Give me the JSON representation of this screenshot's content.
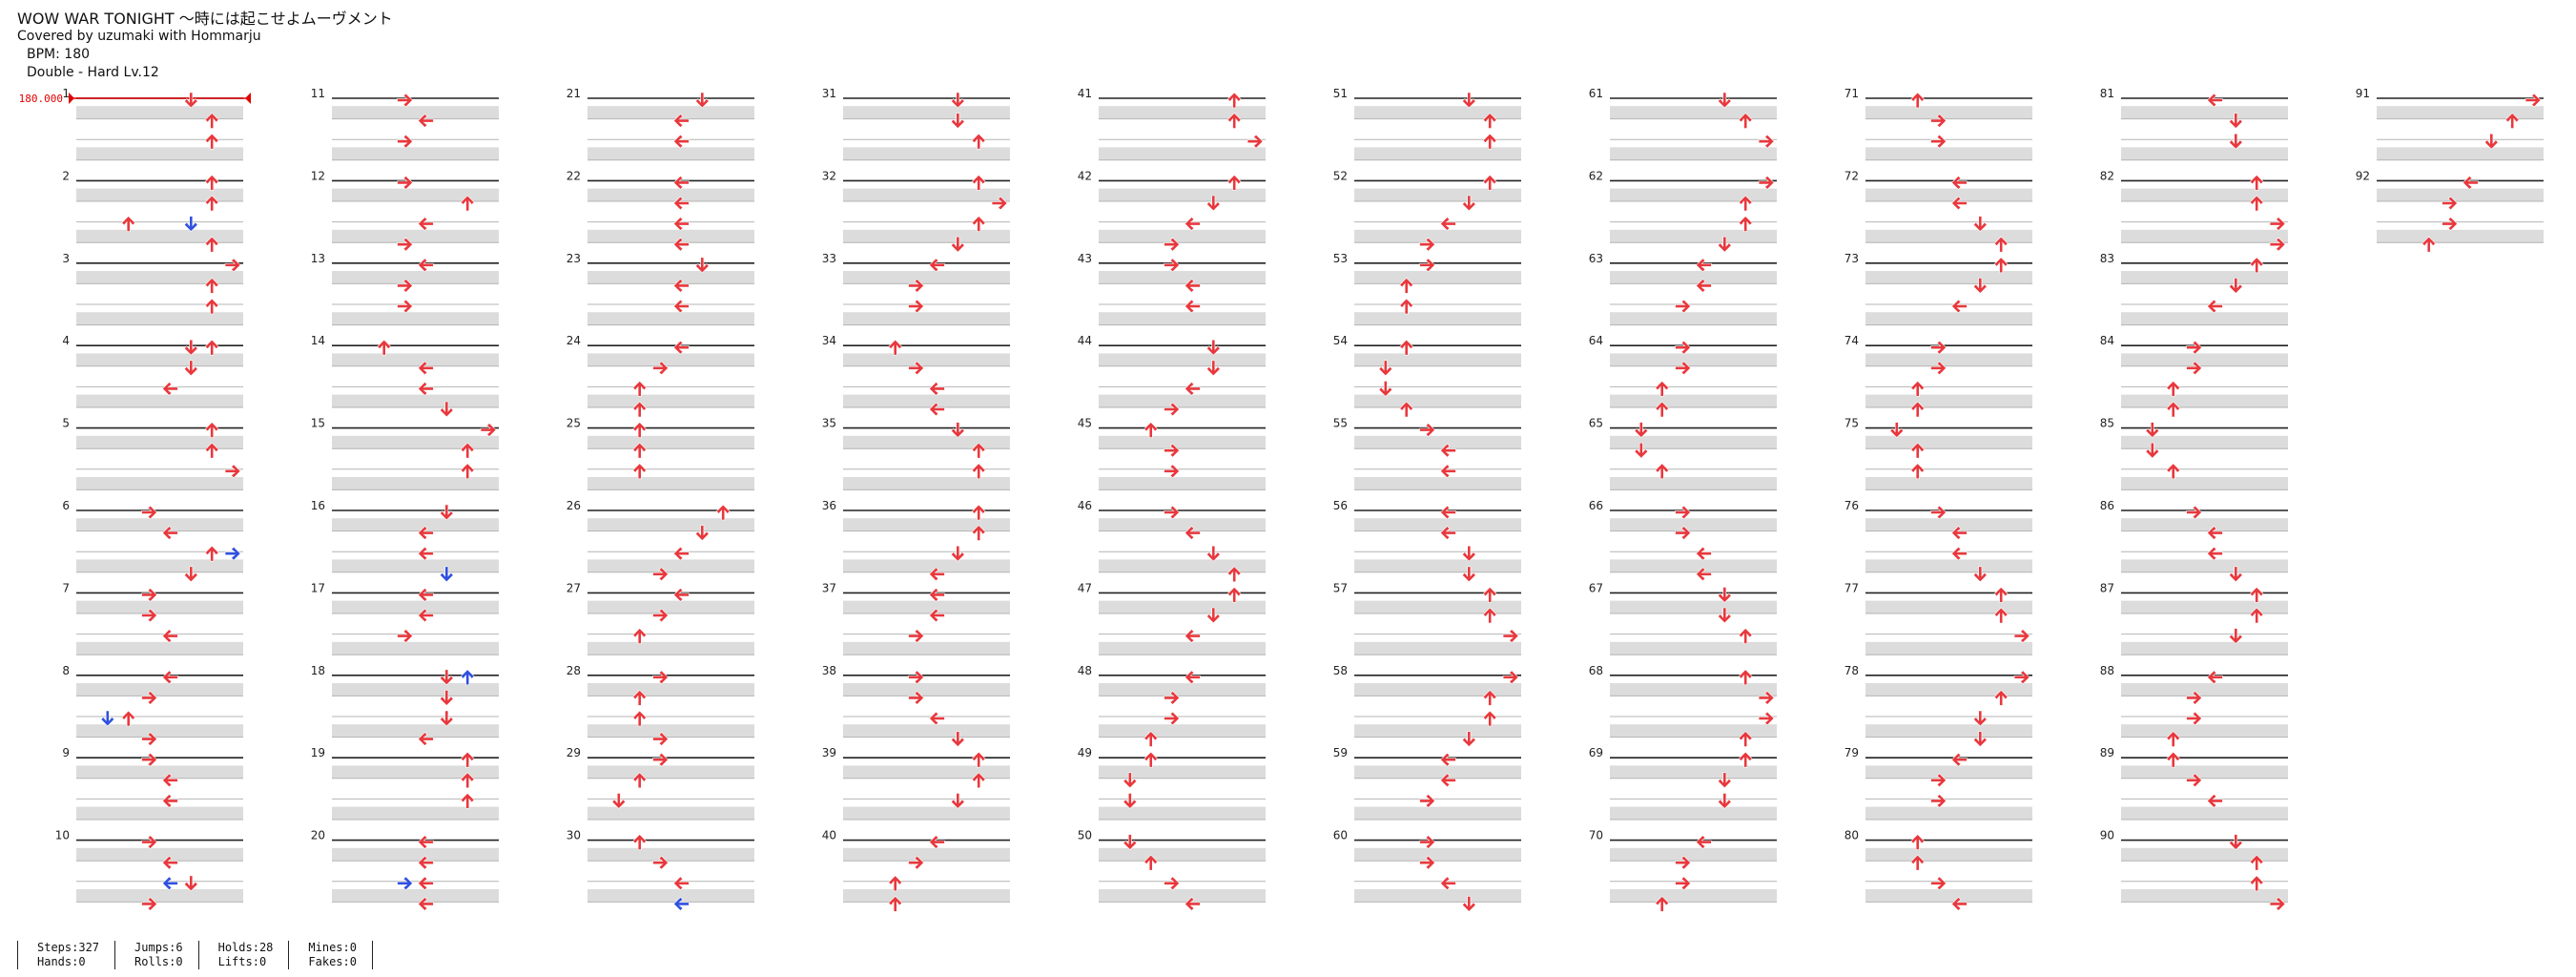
{
  "song": {
    "title": "WOW WAR TONIGHT ～時には起こせよムーヴメント",
    "credit": "Covered by uzumaki with Hommarju",
    "bpm_text": "BPM: 180",
    "difficulty_text": "Double - Hard Lv.12"
  },
  "bpm_marker": "180.000",
  "stats": {
    "steps": "Steps:327",
    "hands": "Hands:0",
    "jumps": "Jumps:6",
    "rolls": "Rolls:0",
    "holds": "Holds:28",
    "lifts": "Lifts:0",
    "mines": "Mines:0",
    "fakes": "Fakes:0"
  },
  "colors": {
    "quarter_arrow": "#e8383d",
    "eighth_arrow": "#3050e0",
    "hold_body": "#7be07b",
    "mine": "#f2d530",
    "bpm_line": "#e00000",
    "beat_stripe": "#dcdcdc"
  },
  "measure_count": 92,
  "measures_per_column": 10,
  "column_count": 10,
  "rows_per_measure": 4,
  "lanes": 8,
  "notes": [
    [
      1,
      0,
      5,
      "q"
    ],
    [
      1,
      1,
      6,
      "q"
    ],
    [
      1,
      2,
      6,
      "q"
    ],
    [
      2,
      0,
      6,
      "q"
    ],
    [
      2,
      1,
      6,
      "q"
    ],
    [
      2,
      2,
      2,
      "q"
    ],
    [
      2,
      2,
      5,
      "e"
    ],
    [
      2,
      3,
      6,
      "q"
    ],
    [
      3,
      0,
      7,
      "q"
    ],
    [
      3,
      1,
      6,
      "q"
    ],
    [
      3,
      2,
      6,
      "q"
    ],
    [
      4,
      0,
      6,
      "q"
    ],
    [
      4,
      0,
      5,
      "q"
    ],
    [
      4,
      1,
      5,
      "q"
    ],
    [
      4,
      2,
      4,
      "q"
    ],
    [
      5,
      0,
      6,
      "q"
    ],
    [
      5,
      1,
      6,
      "q"
    ],
    [
      5,
      2,
      7,
      "q"
    ],
    [
      6,
      0,
      3,
      "q"
    ],
    [
      6,
      1,
      4,
      "q"
    ],
    [
      6,
      2,
      6,
      "q"
    ],
    [
      6,
      2,
      7,
      "e"
    ],
    [
      6,
      3,
      5,
      "q"
    ],
    [
      7,
      0,
      3,
      "q"
    ],
    [
      7,
      1,
      3,
      "q"
    ],
    [
      7,
      2,
      4,
      "q"
    ],
    [
      8,
      0,
      4,
      "q"
    ],
    [
      8,
      1,
      3,
      "q"
    ],
    [
      8,
      2,
      2,
      "q"
    ],
    [
      8,
      2,
      1,
      "e"
    ],
    [
      8,
      3,
      3,
      "q"
    ],
    [
      9,
      0,
      3,
      "q"
    ],
    [
      9,
      1,
      4,
      "q"
    ],
    [
      9,
      2,
      4,
      "q"
    ],
    [
      10,
      0,
      3,
      "q"
    ],
    [
      10,
      1,
      4,
      "q"
    ],
    [
      10,
      2,
      5,
      "q"
    ],
    [
      10,
      2,
      4,
      "e"
    ],
    [
      10,
      3,
      3,
      "q"
    ],
    [
      11,
      0,
      3,
      "q"
    ],
    [
      11,
      1,
      4,
      "q"
    ],
    [
      11,
      2,
      3,
      "q"
    ],
    [
      12,
      0,
      3,
      "q"
    ],
    [
      12,
      1,
      6,
      "q"
    ],
    [
      12,
      2,
      4,
      "q"
    ],
    [
      12,
      3,
      3,
      "q"
    ],
    [
      13,
      0,
      4,
      "q"
    ],
    [
      13,
      1,
      3,
      "q"
    ],
    [
      13,
      2,
      3,
      "q"
    ],
    [
      14,
      0,
      2,
      "q"
    ],
    [
      14,
      1,
      4,
      "q"
    ],
    [
      14,
      2,
      4,
      "q"
    ],
    [
      14,
      3,
      5,
      "q"
    ],
    [
      15,
      0,
      7,
      "q"
    ],
    [
      15,
      1,
      6,
      "q"
    ],
    [
      15,
      2,
      6,
      "q"
    ],
    [
      16,
      0,
      5,
      "q"
    ],
    [
      16,
      1,
      4,
      "q"
    ],
    [
      16,
      2,
      4,
      "q"
    ],
    [
      16,
      3,
      5,
      "e"
    ],
    [
      17,
      0,
      4,
      "q"
    ],
    [
      17,
      1,
      4,
      "q"
    ],
    [
      17,
      2,
      3,
      "q"
    ],
    [
      18,
      0,
      5,
      "q"
    ],
    [
      18,
      0,
      6,
      "e"
    ],
    [
      18,
      1,
      5,
      "q"
    ],
    [
      18,
      2,
      5,
      "q"
    ],
    [
      18,
      3,
      4,
      "q"
    ],
    [
      19,
      0,
      6,
      "q"
    ],
    [
      19,
      1,
      6,
      "q"
    ],
    [
      19,
      2,
      6,
      "q"
    ],
    [
      20,
      0,
      4,
      "q"
    ],
    [
      20,
      1,
      4,
      "q"
    ],
    [
      20,
      2,
      4,
      "q"
    ],
    [
      20,
      2,
      3,
      "e"
    ],
    [
      20,
      3,
      4,
      "q"
    ],
    [
      21,
      0,
      5,
      "q"
    ],
    [
      21,
      1,
      4,
      "q"
    ],
    [
      21,
      2,
      4,
      "q"
    ],
    [
      22,
      0,
      4,
      "q"
    ],
    [
      22,
      1,
      4,
      "q"
    ],
    [
      22,
      2,
      4,
      "q"
    ],
    [
      22,
      3,
      4,
      "q"
    ],
    [
      23,
      0,
      5,
      "q"
    ],
    [
      23,
      1,
      4,
      "q"
    ],
    [
      23,
      2,
      4,
      "q"
    ],
    [
      24,
      0,
      4,
      "q"
    ],
    [
      24,
      1,
      3,
      "q"
    ],
    [
      24,
      2,
      2,
      "q"
    ],
    [
      24,
      3,
      2,
      "q"
    ],
    [
      25,
      0,
      2,
      "q"
    ],
    [
      25,
      1,
      2,
      "q"
    ],
    [
      25,
      2,
      2,
      "q"
    ],
    [
      26,
      0,
      6,
      "q"
    ],
    [
      26,
      1,
      5,
      "q"
    ],
    [
      26,
      2,
      4,
      "q"
    ],
    [
      26,
      3,
      3,
      "q"
    ],
    [
      27,
      0,
      4,
      "q"
    ],
    [
      27,
      1,
      3,
      "q"
    ],
    [
      27,
      2,
      2,
      "q"
    ],
    [
      28,
      0,
      3,
      "q"
    ],
    [
      28,
      1,
      2,
      "q"
    ],
    [
      28,
      2,
      2,
      "q"
    ],
    [
      28,
      3,
      3,
      "q"
    ],
    [
      29,
      0,
      3,
      "q"
    ],
    [
      29,
      1,
      2,
      "q"
    ],
    [
      29,
      2,
      1,
      "q"
    ],
    [
      30,
      0,
      2,
      "q"
    ],
    [
      30,
      1,
      3,
      "q"
    ],
    [
      30,
      2,
      4,
      "q"
    ],
    [
      30,
      3,
      4,
      "e"
    ],
    [
      31,
      0,
      5,
      "q"
    ],
    [
      31,
      1,
      5,
      "q"
    ],
    [
      31,
      2,
      6,
      "q"
    ],
    [
      32,
      0,
      6,
      "q"
    ],
    [
      32,
      1,
      7,
      "q"
    ],
    [
      32,
      2,
      6,
      "q"
    ],
    [
      32,
      3,
      5,
      "q"
    ],
    [
      33,
      0,
      4,
      "q"
    ],
    [
      33,
      1,
      3,
      "q"
    ],
    [
      33,
      2,
      3,
      "q"
    ],
    [
      34,
      0,
      2,
      "q"
    ],
    [
      34,
      1,
      3,
      "q"
    ],
    [
      34,
      2,
      4,
      "q"
    ],
    [
      34,
      3,
      4,
      "q"
    ],
    [
      35,
      0,
      5,
      "q"
    ],
    [
      35,
      1,
      6,
      "q"
    ],
    [
      35,
      2,
      6,
      "q"
    ],
    [
      36,
      0,
      6,
      "q"
    ],
    [
      36,
      1,
      6,
      "q"
    ],
    [
      36,
      2,
      5,
      "q"
    ],
    [
      36,
      3,
      4,
      "q"
    ],
    [
      37,
      0,
      4,
      "q"
    ],
    [
      37,
      1,
      4,
      "q"
    ],
    [
      37,
      2,
      3,
      "q"
    ],
    [
      38,
      0,
      3,
      "q"
    ],
    [
      38,
      1,
      3,
      "q"
    ],
    [
      38,
      2,
      4,
      "q"
    ],
    [
      38,
      3,
      5,
      "q"
    ],
    [
      39,
      0,
      6,
      "q"
    ],
    [
      39,
      1,
      6,
      "q"
    ],
    [
      39,
      2,
      5,
      "q"
    ],
    [
      40,
      0,
      4,
      "q"
    ],
    [
      40,
      1,
      3,
      "q"
    ],
    [
      40,
      2,
      2,
      "q"
    ],
    [
      40,
      3,
      2,
      "q"
    ],
    [
      41,
      0,
      6,
      "q"
    ],
    [
      41,
      1,
      6,
      "q"
    ],
    [
      41,
      2,
      7,
      "q"
    ],
    [
      42,
      0,
      6,
      "q"
    ],
    [
      42,
      1,
      5,
      "q"
    ],
    [
      42,
      2,
      4,
      "q"
    ],
    [
      42,
      3,
      3,
      "q"
    ],
    [
      43,
      0,
      3,
      "q"
    ],
    [
      43,
      1,
      4,
      "q"
    ],
    [
      43,
      2,
      4,
      "q"
    ],
    [
      44,
      0,
      5,
      "q"
    ],
    [
      44,
      1,
      5,
      "q"
    ],
    [
      44,
      2,
      4,
      "q"
    ],
    [
      44,
      3,
      3,
      "q"
    ],
    [
      45,
      0,
      2,
      "q"
    ],
    [
      45,
      1,
      3,
      "q"
    ],
    [
      45,
      2,
      3,
      "q"
    ],
    [
      46,
      0,
      3,
      "q"
    ],
    [
      46,
      1,
      4,
      "q"
    ],
    [
      46,
      2,
      5,
      "q"
    ],
    [
      46,
      3,
      6,
      "q"
    ],
    [
      47,
      0,
      6,
      "q"
    ],
    [
      47,
      1,
      5,
      "q"
    ],
    [
      47,
      2,
      4,
      "q"
    ],
    [
      48,
      0,
      4,
      "q"
    ],
    [
      48,
      1,
      3,
      "q"
    ],
    [
      48,
      2,
      3,
      "q"
    ],
    [
      48,
      3,
      2,
      "q"
    ],
    [
      49,
      0,
      2,
      "q"
    ],
    [
      49,
      1,
      1,
      "q"
    ],
    [
      49,
      2,
      1,
      "q"
    ],
    [
      50,
      0,
      1,
      "q"
    ],
    [
      50,
      1,
      2,
      "q"
    ],
    [
      50,
      2,
      3,
      "q"
    ],
    [
      50,
      3,
      4,
      "q"
    ],
    [
      51,
      0,
      5,
      "q"
    ],
    [
      51,
      1,
      6,
      "q"
    ],
    [
      51,
      2,
      6,
      "q"
    ],
    [
      52,
      0,
      6,
      "q"
    ],
    [
      52,
      1,
      5,
      "q"
    ],
    [
      52,
      2,
      4,
      "q"
    ],
    [
      52,
      3,
      3,
      "q"
    ],
    [
      53,
      0,
      3,
      "q"
    ],
    [
      53,
      1,
      2,
      "q"
    ],
    [
      53,
      2,
      2,
      "q"
    ],
    [
      54,
      0,
      2,
      "q"
    ],
    [
      54,
      1,
      1,
      "q"
    ],
    [
      54,
      2,
      1,
      "q"
    ],
    [
      54,
      3,
      2,
      "q"
    ],
    [
      55,
      0,
      3,
      "q"
    ],
    [
      55,
      1,
      4,
      "q"
    ],
    [
      55,
      2,
      4,
      "q"
    ],
    [
      56,
      0,
      4,
      "q"
    ],
    [
      56,
      1,
      4,
      "q"
    ],
    [
      56,
      2,
      5,
      "q"
    ],
    [
      56,
      3,
      5,
      "q"
    ],
    [
      57,
      0,
      6,
      "q"
    ],
    [
      57,
      1,
      6,
      "q"
    ],
    [
      57,
      2,
      7,
      "q"
    ],
    [
      58,
      0,
      7,
      "q"
    ],
    [
      58,
      1,
      6,
      "q"
    ],
    [
      58,
      2,
      6,
      "q"
    ],
    [
      58,
      3,
      5,
      "q"
    ],
    [
      59,
      0,
      4,
      "q"
    ],
    [
      59,
      1,
      4,
      "q"
    ],
    [
      59,
      2,
      3,
      "q"
    ],
    [
      60,
      0,
      3,
      "q"
    ],
    [
      60,
      1,
      3,
      "q"
    ],
    [
      60,
      2,
      4,
      "q"
    ],
    [
      60,
      3,
      5,
      "q"
    ],
    [
      61,
      0,
      5,
      "q"
    ],
    [
      61,
      1,
      6,
      "q"
    ],
    [
      61,
      2,
      7,
      "q"
    ],
    [
      62,
      0,
      7,
      "q"
    ],
    [
      62,
      1,
      6,
      "q"
    ],
    [
      62,
      2,
      6,
      "q"
    ],
    [
      62,
      3,
      5,
      "q"
    ],
    [
      63,
      0,
      4,
      "q"
    ],
    [
      63,
      1,
      4,
      "q"
    ],
    [
      63,
      2,
      3,
      "q"
    ],
    [
      64,
      0,
      3,
      "q"
    ],
    [
      64,
      1,
      3,
      "q"
    ],
    [
      64,
      2,
      2,
      "q"
    ],
    [
      64,
      3,
      2,
      "q"
    ],
    [
      65,
      0,
      1,
      "q"
    ],
    [
      65,
      1,
      1,
      "q"
    ],
    [
      65,
      2,
      2,
      "q"
    ],
    [
      66,
      0,
      3,
      "q"
    ],
    [
      66,
      1,
      3,
      "q"
    ],
    [
      66,
      2,
      4,
      "q"
    ],
    [
      66,
      3,
      4,
      "q"
    ],
    [
      67,
      0,
      5,
      "q"
    ],
    [
      67,
      1,
      5,
      "q"
    ],
    [
      67,
      2,
      6,
      "q"
    ],
    [
      68,
      0,
      6,
      "q"
    ],
    [
      68,
      1,
      7,
      "q"
    ],
    [
      68,
      2,
      7,
      "q"
    ],
    [
      68,
      3,
      6,
      "q"
    ],
    [
      69,
      0,
      6,
      "q"
    ],
    [
      69,
      1,
      5,
      "q"
    ],
    [
      69,
      2,
      5,
      "q"
    ],
    [
      70,
      0,
      4,
      "q"
    ],
    [
      70,
      1,
      3,
      "q"
    ],
    [
      70,
      2,
      3,
      "q"
    ],
    [
      70,
      3,
      2,
      "q"
    ],
    [
      71,
      0,
      2,
      "q"
    ],
    [
      71,
      1,
      3,
      "q"
    ],
    [
      71,
      2,
      3,
      "q"
    ],
    [
      72,
      0,
      4,
      "q"
    ],
    [
      72,
      1,
      4,
      "q"
    ],
    [
      72,
      2,
      5,
      "q"
    ],
    [
      72,
      3,
      6,
      "q"
    ],
    [
      73,
      0,
      6,
      "q"
    ],
    [
      73,
      1,
      5,
      "q"
    ],
    [
      73,
      2,
      4,
      "q"
    ],
    [
      74,
      0,
      3,
      "q"
    ],
    [
      74,
      1,
      3,
      "q"
    ],
    [
      74,
      2,
      2,
      "q"
    ],
    [
      74,
      3,
      2,
      "q"
    ],
    [
      75,
      0,
      1,
      "q"
    ],
    [
      75,
      1,
      2,
      "q"
    ],
    [
      75,
      2,
      2,
      "q"
    ],
    [
      76,
      0,
      3,
      "q"
    ],
    [
      76,
      1,
      4,
      "q"
    ],
    [
      76,
      2,
      4,
      "q"
    ],
    [
      76,
      3,
      5,
      "q"
    ],
    [
      77,
      0,
      6,
      "q"
    ],
    [
      77,
      1,
      6,
      "q"
    ],
    [
      77,
      2,
      7,
      "q"
    ],
    [
      78,
      0,
      7,
      "q"
    ],
    [
      78,
      1,
      6,
      "q"
    ],
    [
      78,
      2,
      5,
      "q"
    ],
    [
      78,
      3,
      5,
      "q"
    ],
    [
      79,
      0,
      4,
      "q"
    ],
    [
      79,
      1,
      3,
      "q"
    ],
    [
      79,
      2,
      3,
      "q"
    ],
    [
      80,
      0,
      2,
      "q"
    ],
    [
      80,
      1,
      2,
      "q"
    ],
    [
      80,
      2,
      3,
      "q"
    ],
    [
      80,
      3,
      4,
      "q"
    ],
    [
      81,
      0,
      4,
      "q"
    ],
    [
      81,
      1,
      5,
      "q"
    ],
    [
      81,
      2,
      5,
      "q"
    ],
    [
      82,
      0,
      6,
      "q"
    ],
    [
      82,
      1,
      6,
      "q"
    ],
    [
      82,
      2,
      7,
      "q"
    ],
    [
      82,
      3,
      7,
      "q"
    ],
    [
      83,
      0,
      6,
      "q"
    ],
    [
      83,
      1,
      5,
      "q"
    ],
    [
      83,
      2,
      4,
      "q"
    ],
    [
      84,
      0,
      3,
      "q"
    ],
    [
      84,
      1,
      3,
      "q"
    ],
    [
      84,
      2,
      2,
      "q"
    ],
    [
      84,
      3,
      2,
      "q"
    ],
    [
      85,
      0,
      1,
      "q"
    ],
    [
      85,
      1,
      1,
      "q"
    ],
    [
      85,
      2,
      2,
      "q"
    ],
    [
      86,
      0,
      3,
      "q"
    ],
    [
      86,
      1,
      4,
      "q"
    ],
    [
      86,
      2,
      4,
      "q"
    ],
    [
      86,
      3,
      5,
      "q"
    ],
    [
      87,
      0,
      6,
      "q"
    ],
    [
      87,
      1,
      6,
      "q"
    ],
    [
      87,
      2,
      5,
      "q"
    ],
    [
      88,
      0,
      4,
      "q"
    ],
    [
      88,
      1,
      3,
      "q"
    ],
    [
      88,
      2,
      3,
      "q"
    ],
    [
      88,
      3,
      2,
      "q"
    ],
    [
      89,
      0,
      2,
      "q"
    ],
    [
      89,
      1,
      3,
      "q"
    ],
    [
      89,
      2,
      4,
      "q"
    ],
    [
      90,
      0,
      5,
      "q"
    ],
    [
      90,
      1,
      6,
      "q"
    ],
    [
      90,
      2,
      6,
      "q"
    ],
    [
      90,
      3,
      7,
      "q"
    ],
    [
      91,
      0,
      7,
      "q"
    ],
    [
      91,
      1,
      6,
      "q"
    ],
    [
      91,
      2,
      5,
      "q"
    ],
    [
      92,
      0,
      4,
      "q"
    ],
    [
      92,
      1,
      3,
      "q"
    ],
    [
      92,
      2,
      3,
      "q"
    ],
    [
      92,
      3,
      2,
      "q"
    ]
  ]
}
